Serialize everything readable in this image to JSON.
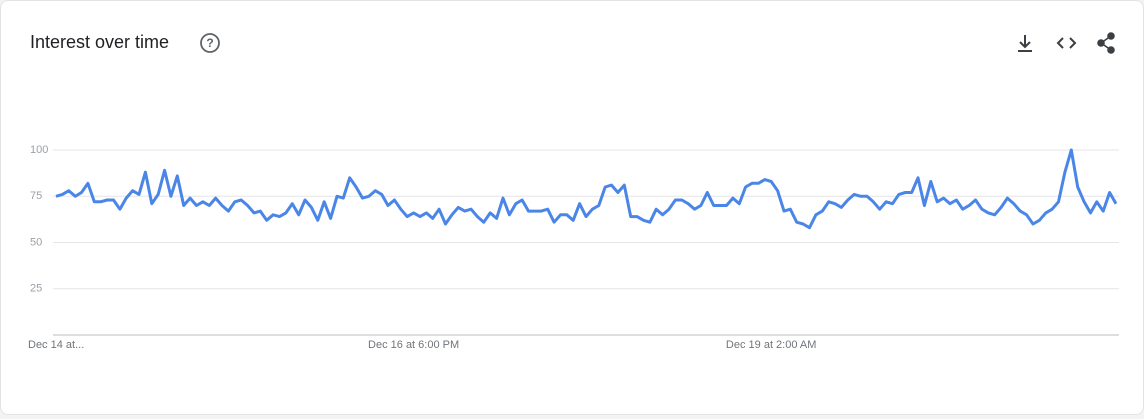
{
  "chart_data": {
    "type": "line",
    "title": "Interest over time",
    "categories": [
      "Dec 14 at...",
      null,
      null,
      null,
      null,
      null,
      null,
      null,
      null,
      null,
      null,
      null,
      null,
      null,
      null,
      null,
      null,
      null,
      null,
      null,
      null,
      null,
      null,
      null,
      null,
      null,
      null,
      null,
      null,
      null,
      null,
      null,
      null,
      null,
      null,
      null,
      null,
      null,
      null,
      null,
      null,
      null,
      null,
      null,
      null,
      null,
      null,
      null,
      null,
      null,
      null,
      null,
      null,
      null,
      null,
      null,
      "Dec 16 at 6:00 PM",
      null,
      null,
      null,
      null,
      null,
      null,
      null,
      null,
      null,
      null,
      null,
      null,
      null,
      null,
      null,
      null,
      null,
      null,
      null,
      null,
      null,
      null,
      null,
      null,
      null,
      null,
      null,
      null,
      null,
      null,
      null,
      null,
      null,
      null,
      null,
      null,
      null,
      null,
      null,
      null,
      null,
      null,
      null,
      null,
      null,
      null,
      null,
      null,
      null,
      null,
      null,
      null,
      null,
      null,
      null,
      "Dec 19 at 2:00 AM",
      null,
      null,
      null,
      null,
      null,
      null,
      null,
      null,
      null,
      null,
      null,
      null,
      null,
      null,
      null,
      null,
      null,
      null,
      null,
      null,
      null,
      null,
      null,
      null,
      null,
      null,
      null,
      null,
      null,
      null,
      null,
      null,
      null,
      null,
      null,
      null,
      null,
      null,
      null,
      null,
      null,
      null,
      null,
      null,
      null,
      null,
      null,
      null,
      null,
      null,
      null,
      null,
      null,
      null
    ],
    "series": [
      {
        "color": "#4a86e8",
        "values": [
          75,
          76,
          78,
          75,
          77,
          82,
          72,
          72,
          73,
          73,
          68,
          74,
          78,
          76,
          88,
          71,
          76,
          89,
          75,
          86,
          70,
          74,
          70,
          72,
          70,
          74,
          70,
          67,
          72,
          73,
          70,
          66,
          67,
          62,
          65,
          64,
          66,
          71,
          65,
          73,
          69,
          62,
          72,
          63,
          75,
          74,
          85,
          80,
          74,
          75,
          78,
          76,
          70,
          73,
          68,
          64,
          66,
          64,
          66,
          63,
          68,
          60,
          65,
          69,
          67,
          68,
          64,
          61,
          66,
          63,
          74,
          65,
          71,
          73,
          67,
          67,
          67,
          68,
          61,
          65,
          65,
          62,
          71,
          64,
          68,
          70,
          80,
          81,
          77,
          81,
          64,
          64,
          62,
          61,
          68,
          65,
          68,
          73,
          73,
          71,
          68,
          70,
          77,
          70,
          70,
          70,
          74,
          71,
          80,
          82,
          82,
          84,
          83,
          78,
          67,
          68,
          61,
          60,
          58,
          65,
          67,
          72,
          71,
          69,
          73,
          76,
          75,
          75,
          72,
          68,
          72,
          71,
          76,
          77,
          77,
          85,
          70,
          83,
          72,
          74,
          71,
          73,
          68,
          70,
          73,
          68,
          66,
          65,
          69,
          74,
          71,
          67,
          65,
          60,
          62,
          66,
          68,
          72,
          88,
          100,
          80,
          72,
          66,
          72,
          67,
          77,
          71
        ]
      }
    ],
    "ylim": [
      0,
      100
    ],
    "yticks": [
      25,
      50,
      75,
      100
    ],
    "grid": true
  }
}
